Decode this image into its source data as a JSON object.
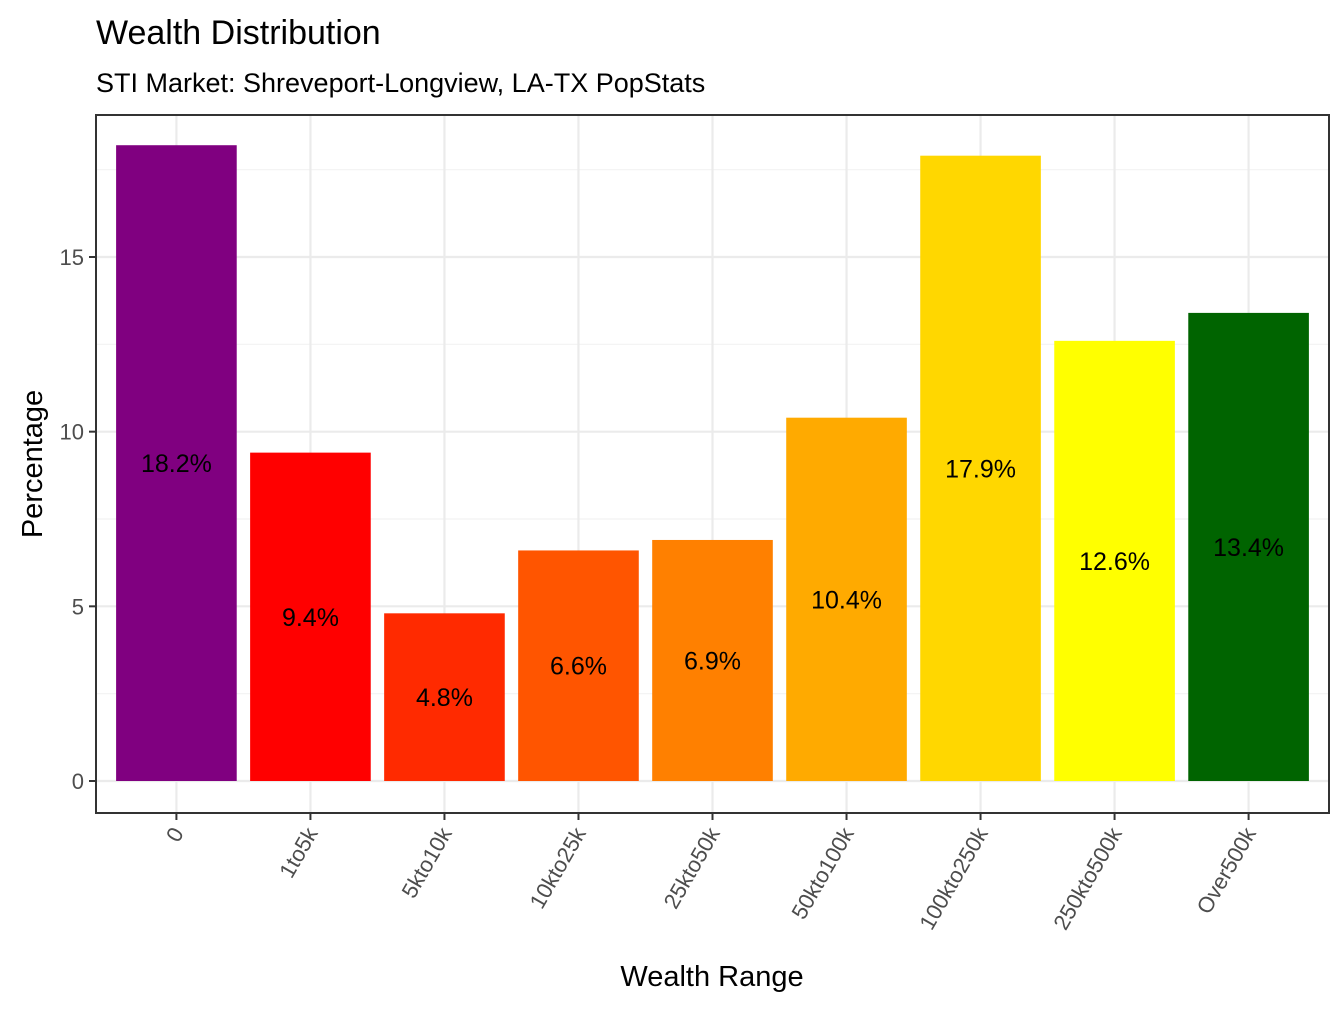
{
  "chart_data": {
    "type": "bar",
    "title": "Wealth Distribution",
    "subtitle": "STI Market: Shreveport-Longview, LA-TX PopStats",
    "xlabel": "Wealth Range",
    "ylabel": "Percentage",
    "ylim": [
      0,
      18.2
    ],
    "yticks": [
      0,
      5,
      10,
      15
    ],
    "grid": true,
    "categories": [
      "0",
      "1to5k",
      "5kto10k",
      "10kto25k",
      "25kto50k",
      "50kto100k",
      "100kto250k",
      "250kto500k",
      "Over500k"
    ],
    "values": [
      18.2,
      9.4,
      4.8,
      6.6,
      6.9,
      10.4,
      17.9,
      12.6,
      13.4
    ],
    "labels": [
      "18.2%",
      "9.4%",
      "4.8%",
      "6.6%",
      "6.9%",
      "10.4%",
      "17.9%",
      "12.6%",
      "13.4%"
    ],
    "colors": [
      "#800080",
      "#ff0000",
      "#ff2a00",
      "#ff5500",
      "#ff8000",
      "#ffaa00",
      "#ffd700",
      "#ffff00",
      "#006400"
    ]
  }
}
